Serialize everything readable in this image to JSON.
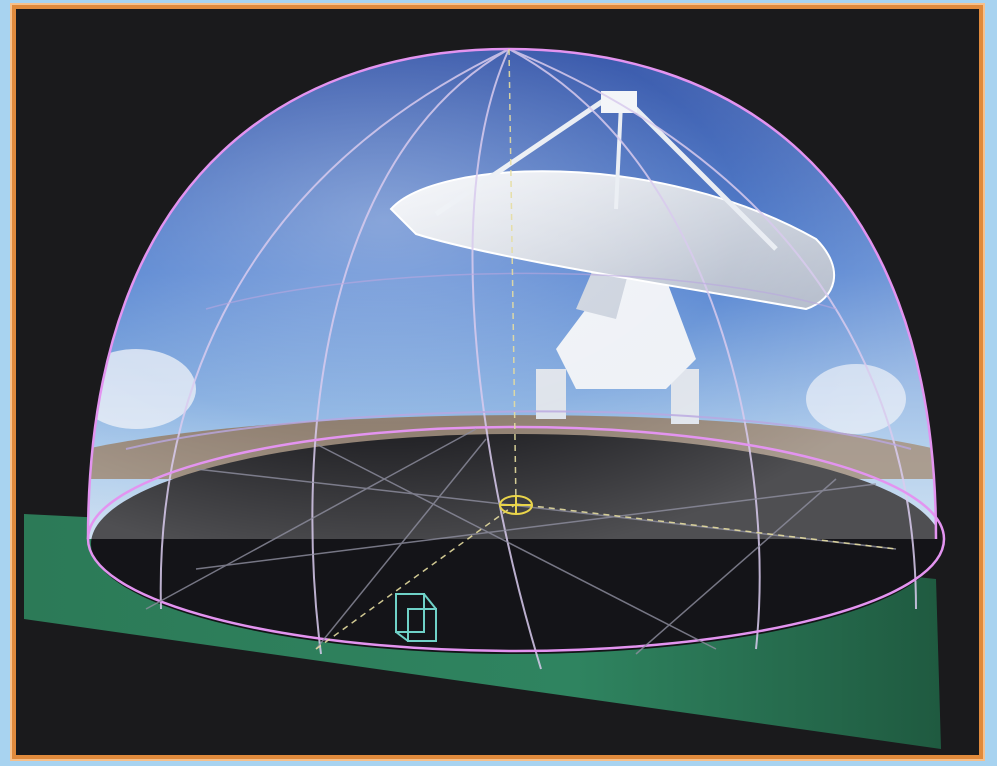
{
  "image": {
    "subject": "planetarium-dome-visualization",
    "colors": {
      "page_background": "#a8d3f0",
      "frame_border": "#e08a3c",
      "scene_background": "#1a1a1c",
      "floor": "#2f7a55",
      "sky_top": "#3d63b8",
      "sky_bottom": "#9ec3e8",
      "dome_rim": "#d88ae8",
      "grid_line": "#c9b8e8",
      "marker": "#e9d44a",
      "seat": "#6fd1c7"
    },
    "icons": [
      "zenith-marker-icon",
      "seat-icon"
    ]
  }
}
